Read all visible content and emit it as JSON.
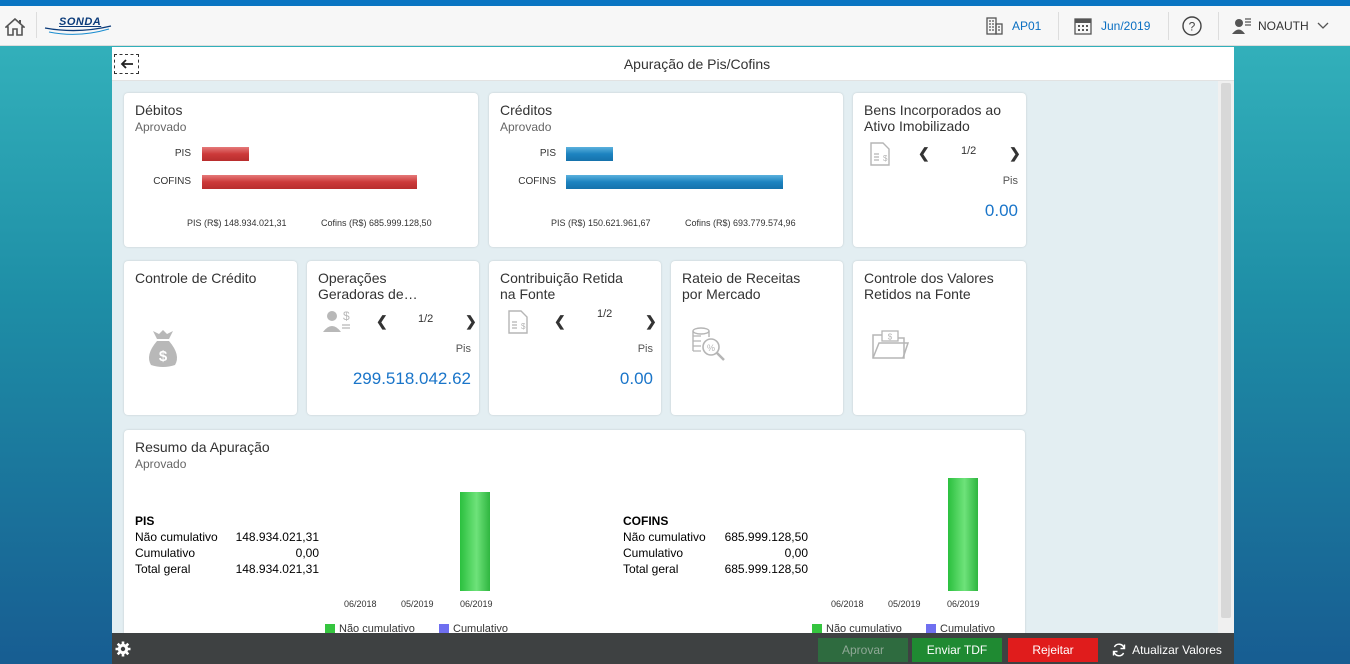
{
  "shell": {
    "logo_text": "SONDA",
    "company": "AP01",
    "period": "Jun/2019",
    "user": "NOAUTH"
  },
  "page": {
    "title": "Apuração de Pis/Cofins"
  },
  "tiles": {
    "debitos": {
      "title": "Débitos",
      "status": "Aprovado",
      "bars": [
        {
          "label": "PIS"
        },
        {
          "label": "COFINS"
        }
      ],
      "footer_pis": "PIS (R$) 148.934.021,31",
      "footer_cofins": "Cofins (R$) 685.999.128,50"
    },
    "creditos": {
      "title": "Créditos",
      "status": "Aprovado",
      "bars": [
        {
          "label": "PIS"
        },
        {
          "label": "COFINS"
        }
      ],
      "footer_pis": "PIS (R$) 150.621.961,67",
      "footer_cofins": "Cofins (R$) 693.779.574,96"
    },
    "bens": {
      "title_line1": "Bens Incorporados ao",
      "title_line2": "Ativo Imobilizado",
      "pager": "1/2",
      "unit": "Pis",
      "value": "0.00"
    },
    "controle_credito": {
      "title": "Controle de Crédito"
    },
    "operacoes": {
      "title_line1": "Operações",
      "title_line2": "Geradoras de…",
      "pager": "1/2",
      "unit": "Pis",
      "value": "299.518.042.62"
    },
    "contribuicao": {
      "title_line1": "Contribuição Retida",
      "title_line2": "na Fonte",
      "pager": "1/2",
      "unit": "Pis",
      "value": "0.00"
    },
    "rateio": {
      "title_line1": "Rateio de Receitas",
      "title_line2": "por Mercado"
    },
    "controle_valores": {
      "title_line1": "Controle dos Valores",
      "title_line2": "Retidos na Fonte"
    }
  },
  "resumo": {
    "title": "Resumo da Apuração",
    "status": "Aprovado",
    "pis": {
      "heading": "PIS",
      "rows": [
        {
          "label": "Não cumulativo",
          "value": "148.934.021,31"
        },
        {
          "label": "Cumulativo",
          "value": "0,00"
        },
        {
          "label": "Total geral",
          "value": "148.934.021,31"
        }
      ]
    },
    "cofins": {
      "heading": "COFINS",
      "rows": [
        {
          "label": "Não cumulativo",
          "value": "685.999.128,50"
        },
        {
          "label": "Cumulativo",
          "value": "0,00"
        },
        {
          "label": "Total geral",
          "value": "685.999.128,50"
        }
      ]
    },
    "legend": {
      "nao_cumulativo": "Não cumulativo",
      "cumulativo": "Cumulativo"
    }
  },
  "footer": {
    "aprovar": "Aprovar",
    "enviar": "Enviar TDF",
    "rejeitar": "Rejeitar",
    "atualizar": "Atualizar Valores"
  },
  "colors": {
    "debitos_bar": "#c83434",
    "creditos_bar": "#1d83c0",
    "nao_cumulativo": "#35c53f",
    "cumulativo": "#6f6ff0",
    "value_blue": "#1a75c9"
  },
  "chart_data": [
    {
      "type": "bar",
      "orientation": "horizontal",
      "title": "Débitos",
      "categories": [
        "PIS",
        "COFINS"
      ],
      "values": [
        148934021.31,
        685999128.5
      ]
    },
    {
      "type": "bar",
      "orientation": "horizontal",
      "title": "Créditos",
      "categories": [
        "PIS",
        "COFINS"
      ],
      "values": [
        150621961.67,
        693779574.96
      ]
    },
    {
      "type": "bar",
      "title": "PIS",
      "categories": [
        "06/2018",
        "05/2019",
        "06/2019"
      ],
      "series": [
        {
          "name": "Não cumulativo",
          "values": [
            0,
            0,
            148934021.31
          ]
        },
        {
          "name": "Cumulativo",
          "values": [
            0,
            0,
            0
          ]
        }
      ]
    },
    {
      "type": "bar",
      "title": "COFINS",
      "categories": [
        "06/2018",
        "05/2019",
        "06/2019"
      ],
      "series": [
        {
          "name": "Não cumulativo",
          "values": [
            0,
            0,
            685999128.5
          ]
        },
        {
          "name": "Cumulativo",
          "values": [
            0,
            0,
            0
          ]
        }
      ]
    }
  ]
}
